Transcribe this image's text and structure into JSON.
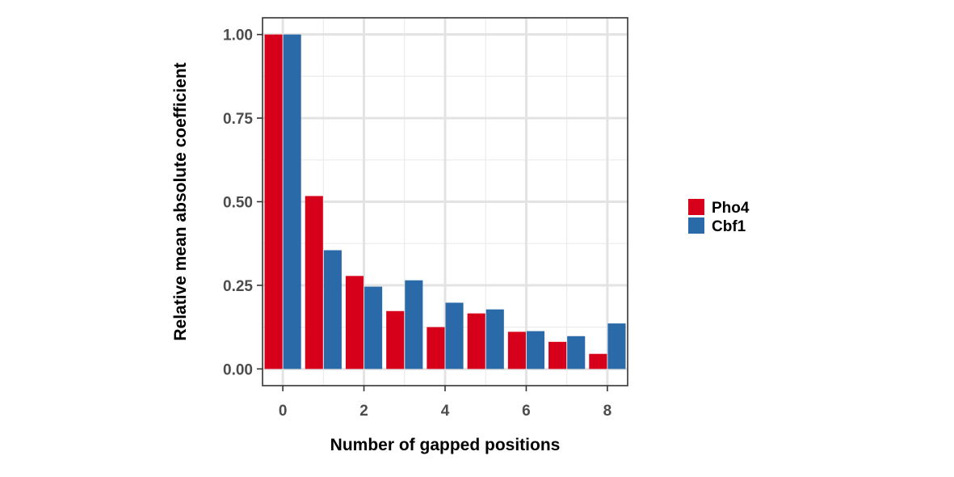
{
  "chart_data": {
    "type": "bar",
    "title": "",
    "xlabel": "Number of gapped positions",
    "ylabel": "Relative mean absolute coefficient",
    "categories": [
      0,
      1,
      2,
      3,
      4,
      5,
      6,
      7,
      8
    ],
    "series": [
      {
        "name": "Pho4",
        "color": "#d7001b",
        "values": [
          1.0,
          0.517,
          0.278,
          0.173,
          0.125,
          0.166,
          0.111,
          0.081,
          0.045
        ]
      },
      {
        "name": "Cbf1",
        "color": "#2b6aa8",
        "values": [
          1.0,
          0.355,
          0.246,
          0.265,
          0.198,
          0.178,
          0.113,
          0.098,
          0.136
        ]
      }
    ],
    "xlim": [
      -0.5,
      8.5
    ],
    "ylim": [
      -0.05,
      1.05
    ],
    "x_ticks": [
      0,
      2,
      4,
      6,
      8
    ],
    "x_tick_labels": [
      "0",
      "2",
      "4",
      "6",
      "8"
    ],
    "y_ticks": [
      0,
      0.25,
      0.5,
      0.75,
      1.0
    ],
    "y_tick_labels": [
      "0.00",
      "0.25",
      "0.50",
      "0.75",
      "1.00"
    ],
    "grid": true,
    "legend_position": "right"
  }
}
